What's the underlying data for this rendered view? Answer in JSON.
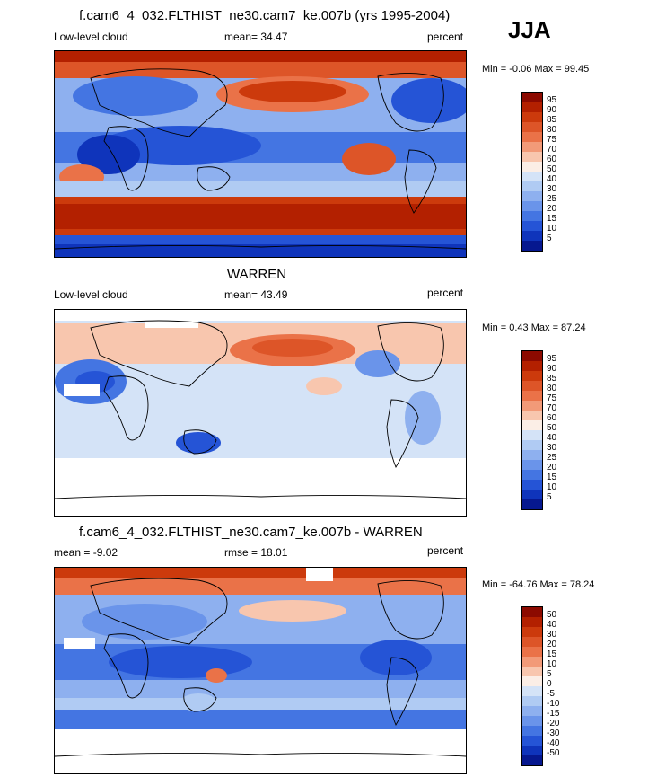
{
  "season": "JJA",
  "panels": [
    {
      "title": "f.cam6_4_032.FLTHIST_ne30.cam7_ke.007b (yrs 1995-2004)",
      "left_label": "Low-level cloud",
      "center_label": "mean=  34.47",
      "right_label": "percent",
      "minmax": "Min =  -0.06 Max =  99.45",
      "levels": [
        "95",
        "90",
        "85",
        "80",
        "75",
        "70",
        "60",
        "50",
        "40",
        "30",
        "25",
        "20",
        "15",
        "10",
        "5"
      ],
      "colors": [
        "#8c0a00",
        "#b32000",
        "#cc3a0c",
        "#dd5528",
        "#ea7248",
        "#f29a78",
        "#f8c6ae",
        "#fbeee6",
        "#d4e3f7",
        "#b0cbf3",
        "#8eb0ef",
        "#6a94ea",
        "#4475e2",
        "#2554d6",
        "#0f34bb",
        "#06188f"
      ]
    },
    {
      "title": "WARREN",
      "left_label": "Low-level cloud",
      "center_label": "mean=  43.49",
      "right_label": "percent",
      "minmax": "Min =  0.43 Max =  87.24",
      "levels": [
        "95",
        "90",
        "85",
        "80",
        "75",
        "70",
        "60",
        "50",
        "40",
        "30",
        "25",
        "20",
        "15",
        "10",
        "5"
      ],
      "colors": [
        "#8c0a00",
        "#b32000",
        "#cc3a0c",
        "#dd5528",
        "#ea7248",
        "#f29a78",
        "#f8c6ae",
        "#fbeee6",
        "#d4e3f7",
        "#b0cbf3",
        "#8eb0ef",
        "#6a94ea",
        "#4475e2",
        "#2554d6",
        "#0f34bb",
        "#06188f"
      ]
    },
    {
      "title": "f.cam6_4_032.FLTHIST_ne30.cam7_ke.007b - WARREN",
      "left_label": "mean =  -9.02",
      "center_label": "rmse =  18.01",
      "right_label": "percent",
      "minmax": "Min = -64.76 Max =  78.24",
      "levels": [
        "50",
        "40",
        "30",
        "20",
        "15",
        "10",
        "5",
        "0",
        "-5",
        "-10",
        "-15",
        "-20",
        "-30",
        "-40",
        "-50"
      ],
      "colors": [
        "#8c0a00",
        "#b32000",
        "#cc3a0c",
        "#dd5528",
        "#ea7248",
        "#f29a78",
        "#f8c6ae",
        "#fbeee6",
        "#d4e3f7",
        "#b0cbf3",
        "#8eb0ef",
        "#6a94ea",
        "#4475e2",
        "#2554d6",
        "#0f34bb",
        "#06188f"
      ]
    }
  ]
}
